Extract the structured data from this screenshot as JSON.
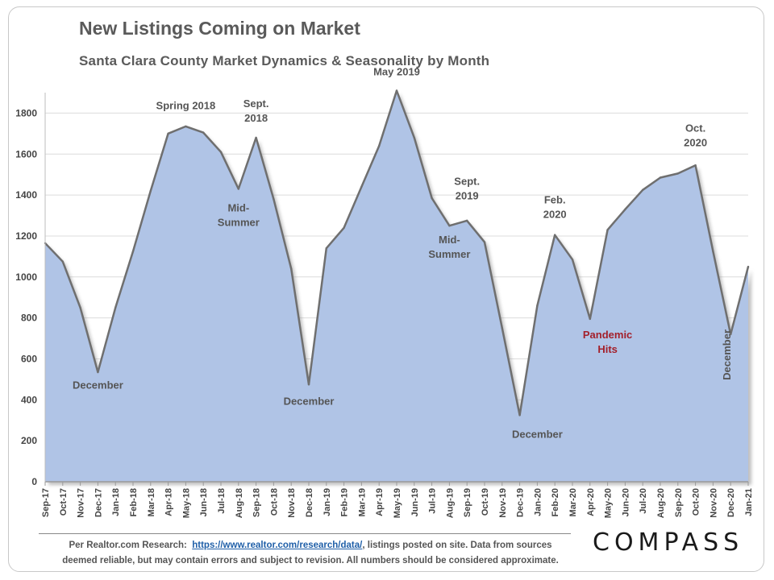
{
  "title": "New Listings Coming on Market",
  "subtitle": "Santa Clara County Market Dynamics & Seasonality by Month",
  "footnote": {
    "prefix": "Per Realtor.com Research:",
    "link": "https://www.realtor.com/research/data/",
    "suffix": ", listings posted on site. Data from sources",
    "line2": "deemed reliable, but may contain errors and subject to revision.  All numbers should  be considered approximate."
  },
  "logo": "COMPASS",
  "chart_data": {
    "type": "area",
    "title": "New Listings Coming on Market",
    "subtitle": "Santa Clara County Market Dynamics & Seasonality by Month",
    "ylim": [
      0,
      1900
    ],
    "yticks": [
      0,
      200,
      400,
      600,
      800,
      1000,
      1200,
      1400,
      1600,
      1800
    ],
    "grid": true,
    "colors": {
      "fill": "#b0c4e6",
      "line": "#6f6f6f",
      "shadow": "#8a8a8a"
    },
    "categories": [
      "Sep-17",
      "Oct-17",
      "Nov-17",
      "Dec-17",
      "Jan-18",
      "Feb-18",
      "Mar-18",
      "Apr-18",
      "May-18",
      "Jun-18",
      "Jul-18",
      "Aug-18",
      "Sep-18",
      "Oct-18",
      "Nov-18",
      "Dec-18",
      "Jan-19",
      "Feb-19",
      "Mar-19",
      "Apr-19",
      "May-19",
      "Jun-19",
      "Jul-19",
      "Aug-19",
      "Sep-19",
      "Oct-19",
      "Nov-19",
      "Dec-19",
      "Jan-20",
      "Feb-20",
      "Mar-20",
      "Apr-20",
      "May-20",
      "Jun-20",
      "Jul-20",
      "Aug-20",
      "Sep-20",
      "Oct-20",
      "Nov-20",
      "Dec-20",
      "Jan-21"
    ],
    "values": [
      1165,
      1075,
      850,
      535,
      850,
      1125,
      1420,
      1700,
      1735,
      1705,
      1610,
      1430,
      1680,
      1380,
      1040,
      475,
      1140,
      1240,
      1440,
      1640,
      1910,
      1680,
      1385,
      1250,
      1275,
      1170,
      750,
      325,
      860,
      1205,
      1085,
      795,
      1230,
      1330,
      1425,
      1485,
      1505,
      1545,
      1125,
      720,
      1050
    ],
    "annotations": [
      {
        "lines": [
          "Spring 2018"
        ],
        "index": 8,
        "value": 1820,
        "color": "#555555"
      },
      {
        "lines": [
          "Sept.",
          "2018"
        ],
        "index": 12,
        "value": 1830,
        "color": "#555555"
      },
      {
        "lines": [
          "Mid-",
          "Summer"
        ],
        "index": 11,
        "value": 1320,
        "color": "#555555"
      },
      {
        "lines": [
          "December"
        ],
        "index": 3,
        "value": 455,
        "color": "#555555"
      },
      {
        "lines": [
          "May 2019"
        ],
        "index": 20,
        "value": 1985,
        "color": "#555555"
      },
      {
        "lines": [
          "December"
        ],
        "index": 15,
        "value": 375,
        "color": "#555555"
      },
      {
        "lines": [
          "Sept.",
          "2019"
        ],
        "index": 24,
        "value": 1450,
        "color": "#555555"
      },
      {
        "lines": [
          "Mid-",
          "Summer"
        ],
        "index": 23,
        "value": 1165,
        "color": "#555555"
      },
      {
        "lines": [
          "Feb.",
          "2020"
        ],
        "index": 29,
        "value": 1360,
        "color": "#555555"
      },
      {
        "lines": [
          "Pandemic",
          "Hits"
        ],
        "index": 32,
        "value": 700,
        "color": "#a31f2a"
      },
      {
        "lines": [
          "December"
        ],
        "index": 28,
        "value": 215,
        "color": "#555555"
      },
      {
        "lines": [
          "Oct.",
          "2020"
        ],
        "index": 37,
        "value": 1710,
        "color": "#555555"
      },
      {
        "lines": [
          "December"
        ],
        "index": 39,
        "value": 620,
        "color": "#555555",
        "vertical": true
      }
    ]
  }
}
